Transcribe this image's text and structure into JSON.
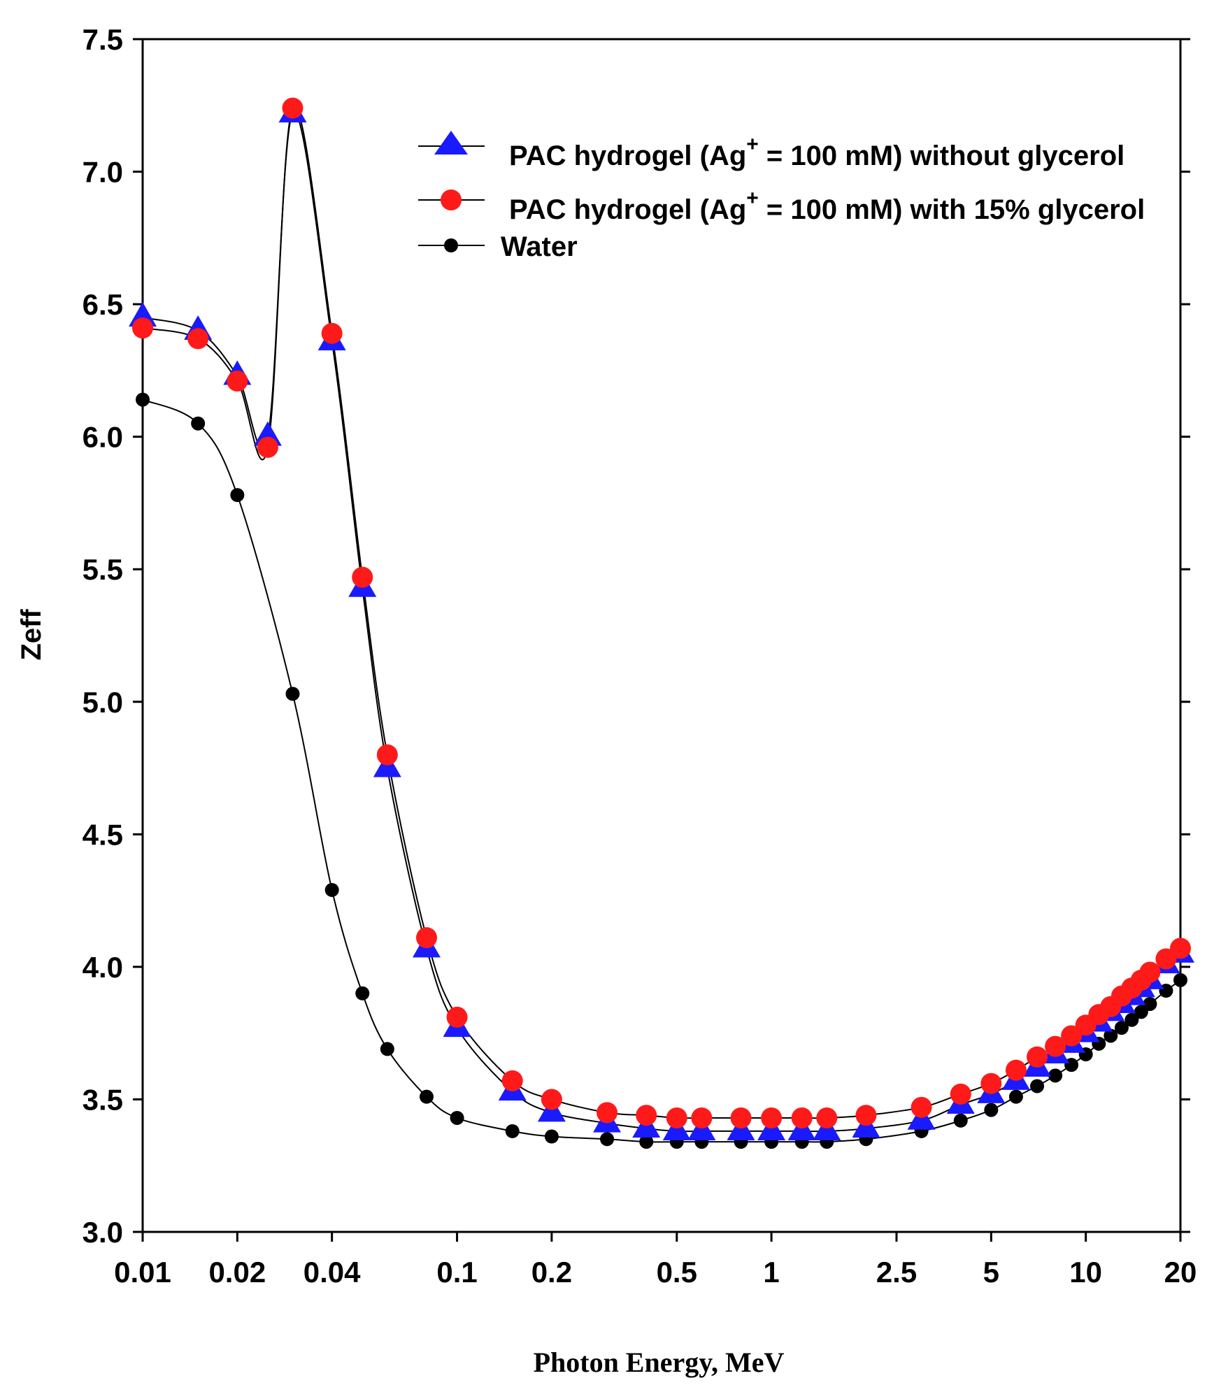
{
  "chart_data": {
    "type": "line",
    "title": "",
    "xlabel": "Photon Energy, MeV",
    "ylabel": "Zeff",
    "xscale": "log",
    "xlim": [
      0.01,
      20
    ],
    "ylim": [
      3.0,
      7.5
    ],
    "x_ticks": [
      {
        "value": 0.01,
        "label": "0.01"
      },
      {
        "value": 0.02,
        "label": "0.02"
      },
      {
        "value": 0.04,
        "label": "0.04"
      },
      {
        "value": 0.1,
        "label": "0.1"
      },
      {
        "value": 0.2,
        "label": "0.2"
      },
      {
        "value": 0.5,
        "label": "0.5"
      },
      {
        "value": 1,
        "label": "1"
      },
      {
        "value": 2.5,
        "label": "2.5"
      },
      {
        "value": 5,
        "label": "5"
      },
      {
        "value": 10,
        "label": "10"
      },
      {
        "value": 20,
        "label": "20"
      }
    ],
    "y_ticks": [
      {
        "value": 3.0,
        "label": "3.0"
      },
      {
        "value": 3.5,
        "label": "3.5"
      },
      {
        "value": 4.0,
        "label": "4.0"
      },
      {
        "value": 4.5,
        "label": "4.5"
      },
      {
        "value": 5.0,
        "label": "5.0"
      },
      {
        "value": 5.5,
        "label": "5.5"
      },
      {
        "value": 6.0,
        "label": "6.0"
      },
      {
        "value": 6.5,
        "label": "6.5"
      },
      {
        "value": 7.0,
        "label": "7.0"
      },
      {
        "value": 7.5,
        "label": "7.5"
      }
    ],
    "x": [
      0.01,
      0.015,
      0.02,
      0.025,
      0.03,
      0.04,
      0.05,
      0.06,
      0.08,
      0.1,
      0.15,
      0.2,
      0.3,
      0.4,
      0.5,
      0.6,
      0.8,
      1.0,
      1.25,
      1.5,
      2.0,
      3.0,
      4.0,
      5.0,
      6.0,
      7.0,
      8.0,
      9.0,
      10.0,
      11.0,
      12.0,
      13.0,
      14.0,
      15.0,
      16.0,
      18.0,
      20.0
    ],
    "legend_position": "top-right",
    "legend": {
      "series1_prefix": "PAC hydrogel (Ag",
      "series1_sup": "+",
      "series1_suffix": " = 100 mM) without glycerol",
      "series2_prefix": "PAC hydrogel (Ag",
      "series2_sup": "+",
      "series2_suffix": " = 100 mM) with 15% glycerol",
      "series3": "Water"
    },
    "series": [
      {
        "name": "PAC hydrogel (Ag+ = 100 mM) without glycerol",
        "marker": "triangle",
        "color": "#1a1aff",
        "values": [
          6.45,
          6.4,
          6.23,
          6.0,
          7.22,
          6.36,
          5.43,
          4.75,
          4.07,
          3.77,
          3.53,
          3.45,
          3.41,
          3.39,
          3.38,
          3.38,
          3.38,
          3.38,
          3.38,
          3.38,
          3.39,
          3.42,
          3.48,
          3.52,
          3.57,
          3.62,
          3.67,
          3.71,
          3.75,
          3.79,
          3.83,
          3.86,
          3.89,
          3.92,
          3.95,
          4.01,
          4.05
        ]
      },
      {
        "name": "PAC hydrogel (Ag+ = 100 mM) with 15% glycerol",
        "marker": "circle",
        "color": "#ff1a1a",
        "values": [
          6.41,
          6.37,
          6.21,
          5.96,
          7.24,
          6.39,
          5.47,
          4.8,
          4.11,
          3.81,
          3.57,
          3.5,
          3.45,
          3.44,
          3.43,
          3.43,
          3.43,
          3.43,
          3.43,
          3.43,
          3.44,
          3.47,
          3.52,
          3.56,
          3.61,
          3.66,
          3.7,
          3.74,
          3.78,
          3.82,
          3.85,
          3.89,
          3.92,
          3.95,
          3.98,
          4.03,
          4.07
        ]
      },
      {
        "name": "Water",
        "marker": "dot",
        "color": "#000000",
        "values": [
          6.14,
          6.05,
          5.78,
          null,
          5.03,
          4.29,
          3.9,
          3.69,
          3.51,
          3.43,
          3.38,
          3.36,
          3.35,
          3.34,
          3.34,
          3.34,
          3.34,
          3.34,
          3.34,
          3.34,
          3.35,
          3.38,
          3.42,
          3.46,
          3.51,
          3.55,
          3.59,
          3.63,
          3.67,
          3.71,
          3.74,
          3.77,
          3.8,
          3.83,
          3.86,
          3.91,
          3.95
        ]
      }
    ]
  }
}
